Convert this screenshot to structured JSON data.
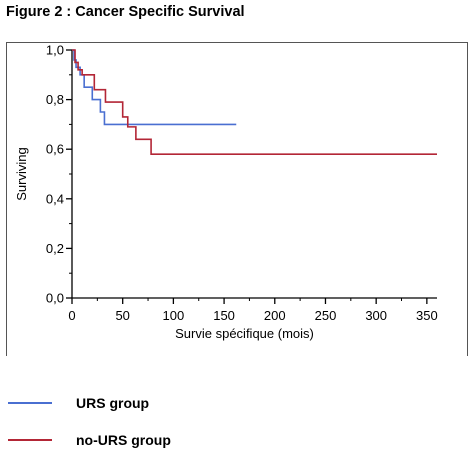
{
  "figure": {
    "title": "Figure 2 : Cancer Specific Survival"
  },
  "colors": {
    "urs": "#4a6fd1",
    "no_urs": "#b32636",
    "axis": "#000000"
  },
  "chart_data": {
    "type": "line",
    "title": "",
    "xlabel": "Survie spécifique (mois)",
    "ylabel": "Surviving",
    "xlim": [
      0,
      360
    ],
    "ylim": [
      0,
      1
    ],
    "x_ticks": [
      "0",
      "50",
      "100",
      "150",
      "200",
      "250",
      "300",
      "350"
    ],
    "y_ticks": [
      "0,0",
      "0,2",
      "0,4",
      "0,6",
      "0,8",
      "1,0"
    ],
    "x_tick_values": [
      0,
      50,
      100,
      150,
      200,
      250,
      300,
      350
    ],
    "y_tick_values": [
      0,
      0.2,
      0.4,
      0.6,
      0.8,
      1.0
    ],
    "series": [
      {
        "name": "URS group",
        "color": "#4a6fd1",
        "step": true,
        "x": [
          0,
          2,
          4,
          8,
          12,
          20,
          28,
          32,
          50,
          55,
          162
        ],
        "y": [
          1.0,
          0.96,
          0.93,
          0.9,
          0.85,
          0.8,
          0.75,
          0.7,
          0.7,
          0.7,
          0.7
        ]
      },
      {
        "name": "no-URS group",
        "color": "#b32636",
        "step": true,
        "x": [
          0,
          3,
          6,
          10,
          22,
          33,
          50,
          55,
          63,
          78,
          360
        ],
        "y": [
          1.0,
          0.95,
          0.92,
          0.9,
          0.84,
          0.79,
          0.73,
          0.69,
          0.64,
          0.58,
          0.58
        ]
      }
    ]
  },
  "legend": [
    {
      "label": "URS group",
      "color": "#4a6fd1"
    },
    {
      "label": "no-URS group",
      "color": "#b32636"
    }
  ]
}
